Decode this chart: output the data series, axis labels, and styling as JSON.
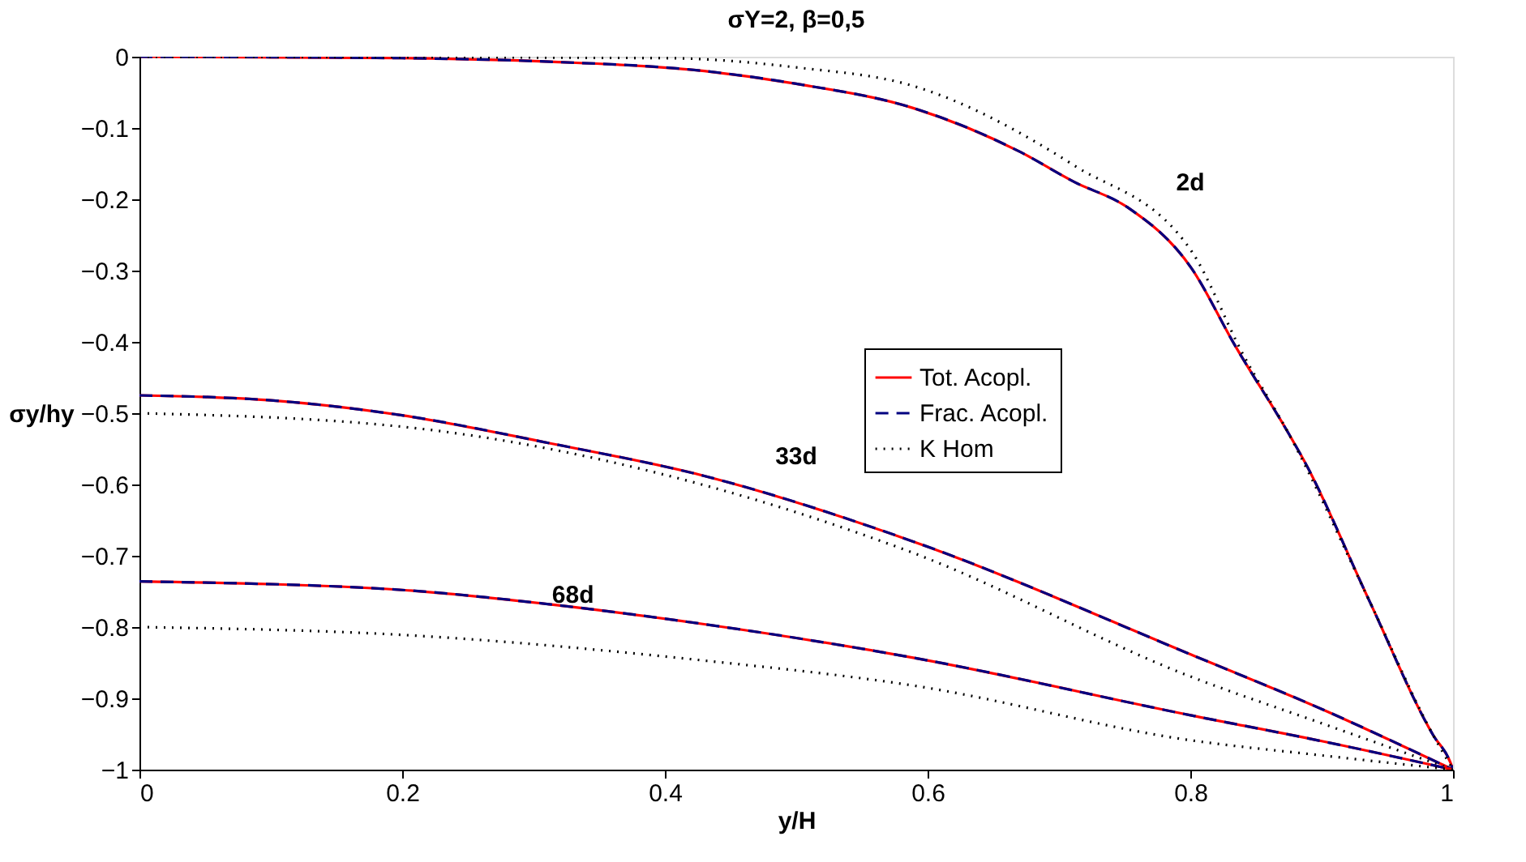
{
  "chart_data": {
    "type": "line",
    "title": "σY=2, β=0,5",
    "xlabel": "y/H",
    "ylabel": "σy/hy",
    "xlim": [
      0,
      1
    ],
    "xticks": [
      0,
      0.2,
      0.4,
      0.6,
      0.8,
      1
    ],
    "ylim": [
      -1,
      0
    ],
    "yticks": [
      -1,
      -0.9,
      -0.8,
      -0.7,
      -0.6,
      -0.5,
      -0.4,
      -0.3,
      -0.2,
      -0.1,
      0
    ],
    "grid": false,
    "legend": "right",
    "series": [
      {
        "name": "Tot. Acopl.",
        "color": "#ff0000",
        "line_style": "solid",
        "x": [
          0,
          0.2,
          0.312,
          0.43,
          0.5,
          0.589,
          0.671,
          0.712,
          0.752,
          0.801,
          0.834,
          0.875,
          0.887,
          0.936,
          0.985,
          0.998,
          1
        ],
        "values": [
          0,
          -0.002,
          -0.007,
          -0.02,
          -0.038,
          -0.072,
          -0.134,
          -0.176,
          -0.211,
          -0.297,
          -0.405,
          -0.529,
          -0.568,
          -0.762,
          -0.952,
          -0.99,
          -1
        ]
      },
      {
        "name": "Frac. Acopl.",
        "color": "#000080",
        "line_style": "dashed",
        "x": [
          0,
          0.2,
          0.312,
          0.43,
          0.5,
          0.589,
          0.671,
          0.712,
          0.752,
          0.801,
          0.834,
          0.875,
          0.887,
          0.936,
          0.985,
          0.998,
          1
        ],
        "values": [
          0,
          -0.002,
          -0.007,
          -0.02,
          -0.038,
          -0.072,
          -0.134,
          -0.176,
          -0.211,
          -0.297,
          -0.405,
          -0.529,
          -0.568,
          -0.762,
          -0.952,
          -0.99,
          -1
        ]
      },
      {
        "name": "K Hom",
        "color": "#000000",
        "line_style": "dotted",
        "x": [
          0,
          0.4,
          0.5,
          0.589,
          0.712,
          0.801,
          0.84,
          0.875,
          0.936,
          0.985,
          1
        ],
        "values": [
          0,
          -0.002,
          -0.015,
          -0.041,
          -0.153,
          -0.273,
          -0.417,
          -0.529,
          -0.762,
          -0.952,
          -1
        ]
      },
      {
        "color": "#ff0000",
        "line_style": "solid",
        "x": [
          0,
          0.1,
          0.2,
          0.312,
          0.43,
          0.589,
          0.801,
          0.9,
          1
        ],
        "values": [
          -0.475,
          -0.482,
          -0.503,
          -0.542,
          -0.588,
          -0.68,
          -0.839,
          -0.915,
          -1
        ]
      },
      {
        "color": "#000080",
        "line_style": "dashed",
        "x": [
          0,
          0.1,
          0.2,
          0.312,
          0.43,
          0.589,
          0.801,
          0.9,
          1
        ],
        "values": [
          -0.475,
          -0.482,
          -0.503,
          -0.542,
          -0.588,
          -0.68,
          -0.839,
          -0.915,
          -1
        ]
      },
      {
        "color": "#000000",
        "line_style": "dotted",
        "x": [
          0,
          0.2,
          0.43,
          0.589,
          0.801,
          0.9,
          1
        ],
        "values": [
          -0.5,
          -0.519,
          -0.601,
          -0.696,
          -0.87,
          -0.935,
          -1
        ]
      },
      {
        "color": "#ff0000",
        "line_style": "solid",
        "x": [
          0,
          0.2,
          0.312,
          0.43,
          0.589,
          0.801,
          0.9,
          1
        ],
        "values": [
          -0.736,
          -0.748,
          -0.768,
          -0.796,
          -0.843,
          -0.924,
          -0.96,
          -1
        ]
      },
      {
        "color": "#000080",
        "line_style": "dashed",
        "x": [
          0,
          0.2,
          0.312,
          0.43,
          0.589,
          0.801,
          0.9,
          1
        ],
        "values": [
          -0.736,
          -0.748,
          -0.768,
          -0.796,
          -0.843,
          -0.924,
          -0.96,
          -1
        ]
      },
      {
        "color": "#000000",
        "line_style": "dotted",
        "x": [
          0,
          0.2,
          0.43,
          0.589,
          0.801,
          0.9,
          1
        ],
        "values": [
          -0.8,
          -0.811,
          -0.847,
          -0.882,
          -0.959,
          -0.98,
          -1
        ]
      }
    ],
    "annotations": [
      "2d",
      "33d",
      "68d"
    ]
  }
}
